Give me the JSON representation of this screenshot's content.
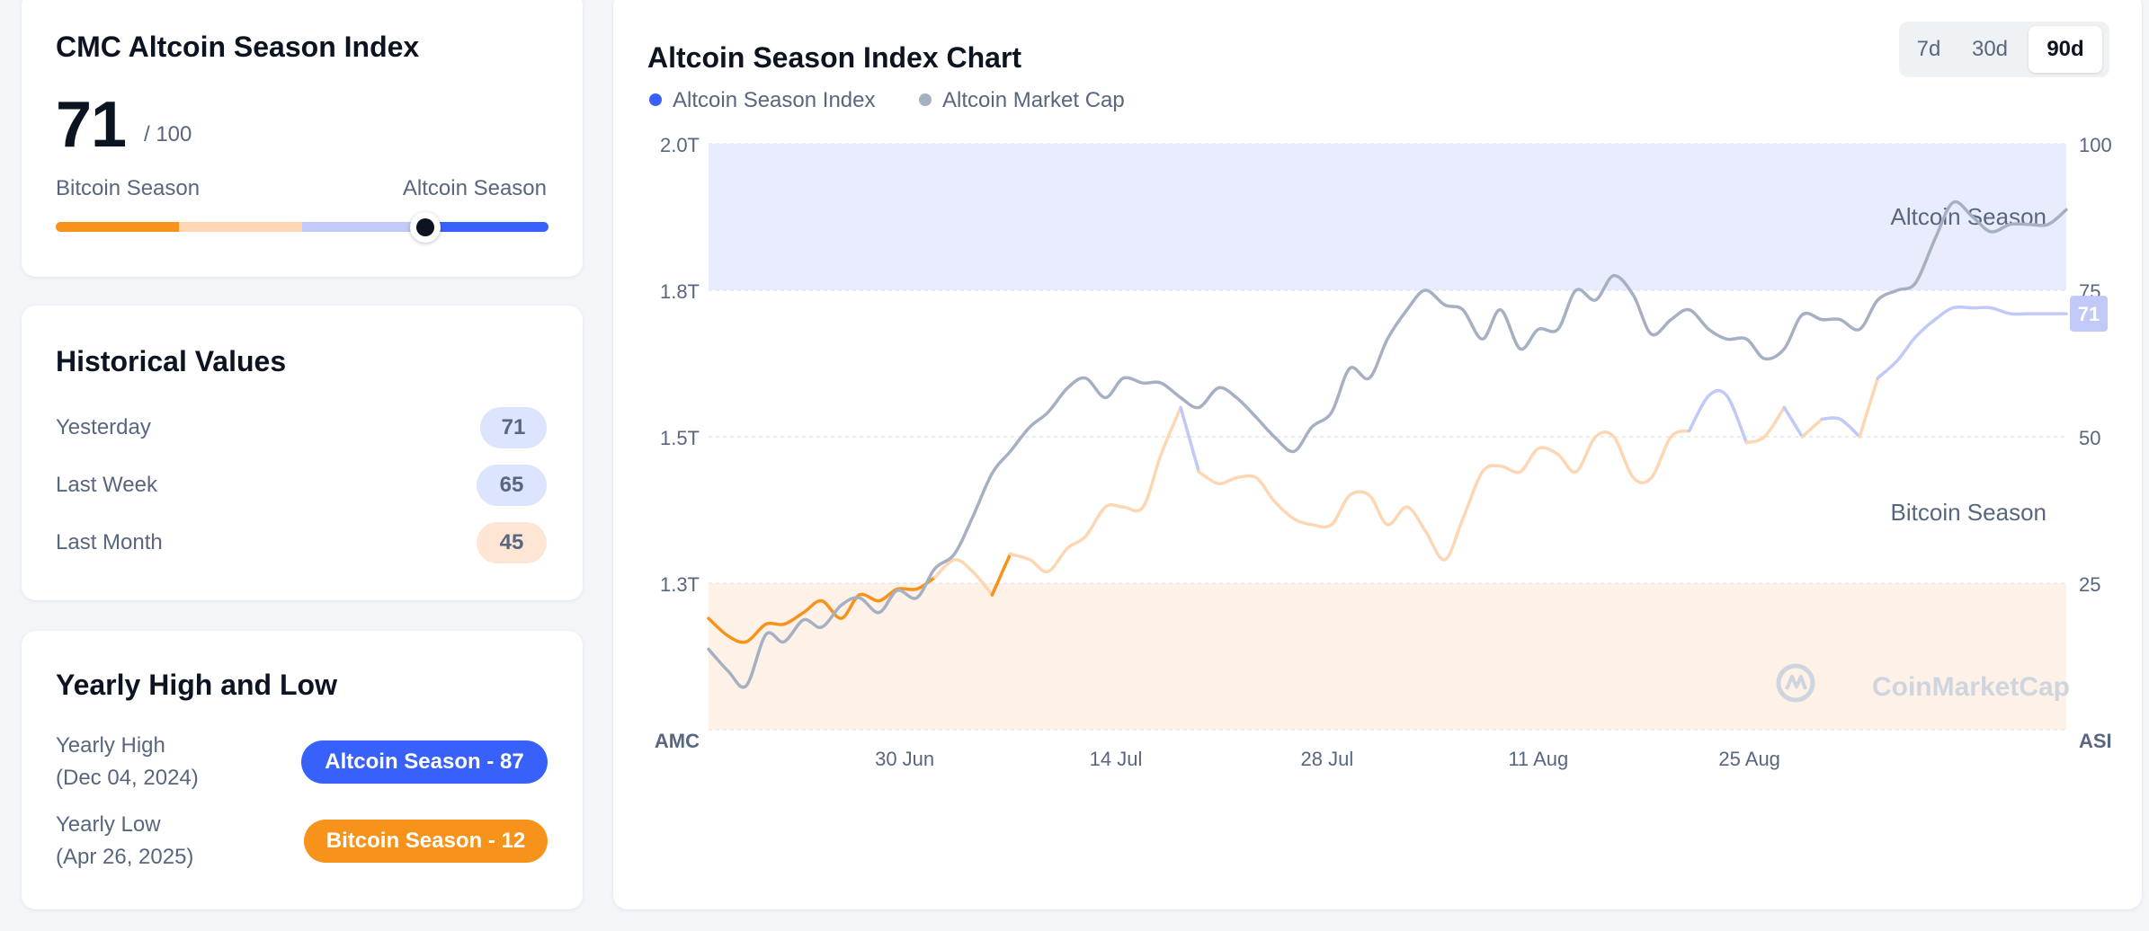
{
  "index_card": {
    "title": "CMC Altcoin Season Index",
    "value": "71",
    "max": "/ 100",
    "left_label": "Bitcoin Season",
    "right_label": "Altcoin Season",
    "position_pct": 71,
    "colors": [
      "#f7931a",
      "#fdd6b4",
      "#c0c9f7",
      "#3861fb"
    ]
  },
  "historical": {
    "title": "Historical Values",
    "rows": [
      {
        "label": "Yesterday",
        "value": "71",
        "bg": "#dde4fd"
      },
      {
        "label": "Last Week",
        "value": "65",
        "bg": "#dde4fd"
      },
      {
        "label": "Last Month",
        "value": "45",
        "bg": "#fde6d4"
      }
    ]
  },
  "yearly": {
    "title": "Yearly High and Low",
    "high_label": "Yearly High",
    "high_date": "(Dec 04, 2024)",
    "high_badge": "Altcoin Season - 87",
    "high_color": "#3861fb",
    "low_label": "Yearly Low",
    "low_date": "(Apr 26, 2025)",
    "low_badge": "Bitcoin Season - 12",
    "low_color": "#f7931a"
  },
  "chart_card": {
    "title": "Altcoin Season Index Chart",
    "tabs": [
      "7d",
      "30d",
      "90d"
    ],
    "active_tab": "90d"
  },
  "chart_data": {
    "type": "line",
    "title": "Altcoin Season Index Chart",
    "x_ticks": [
      "30 Jun",
      "14 Jul",
      "28 Jul",
      "11 Aug",
      "25 Aug"
    ],
    "x_tick_days": [
      19,
      33,
      47,
      61,
      75
    ],
    "x_range_days": [
      6,
      96
    ],
    "x_start_label": "AMC",
    "x_end_label": "ASI",
    "y_left_ticks": [
      "2.0T",
      "1.8T",
      "1.5T",
      "1.3T"
    ],
    "y_right_ticks": [
      "100",
      "75",
      "50",
      "25"
    ],
    "y_right_range": [
      0,
      100
    ],
    "y_left_tick_values": [
      2.0,
      1.8,
      1.5,
      1.3
    ],
    "zones": [
      {
        "label": "Altcoin Season",
        "from": 75,
        "to": 100,
        "color": "#e9ecfd"
      },
      {
        "label": "Bitcoin Season",
        "from": 0,
        "to": 25,
        "color": "#fef1e7"
      }
    ],
    "last_value_label": "71",
    "watermark": "CoinMarketCap",
    "series": [
      {
        "name": "Altcoin Season Index",
        "color": "#3861fb",
        "days": [
          6,
          7.3,
          8.5,
          9.8,
          11,
          12.3,
          13.5,
          14.8,
          16,
          17.3,
          18.5,
          19.8,
          21,
          22.3,
          23.5,
          24.8,
          26,
          27.3,
          28.5,
          29.8,
          31,
          32.3,
          33.5,
          34.8,
          36,
          37.3,
          38.5,
          39.8,
          41,
          42.3,
          43.5,
          44.8,
          46,
          47.3,
          48.5,
          49.8,
          51,
          52.3,
          53.5,
          54.8,
          56,
          57.3,
          58.5,
          59.8,
          61,
          62.3,
          63.5,
          64.8,
          66,
          67.3,
          68.5,
          69.8,
          71,
          72.3,
          73.5,
          74.8,
          76,
          77.3,
          78.5,
          79.8,
          81,
          82.3,
          83.5,
          84.8,
          86,
          87.3,
          88.5,
          89.8,
          91,
          92.3,
          93.5,
          94.8,
          96
        ],
        "values": [
          19,
          16,
          15,
          18,
          18,
          20,
          22,
          19,
          23,
          22,
          24,
          24,
          26,
          29,
          27,
          23,
          30,
          29,
          27,
          31,
          33,
          38,
          38,
          38,
          47,
          55,
          44,
          42,
          43,
          43,
          39,
          36,
          35,
          35,
          40,
          40,
          35,
          38,
          34,
          29,
          36,
          44,
          45,
          44,
          48,
          47,
          44,
          50,
          50,
          43,
          43,
          50,
          51,
          57,
          57,
          49,
          50,
          55,
          50,
          53,
          53,
          50,
          60,
          63,
          67,
          70,
          72,
          72,
          72,
          71,
          71,
          71,
          71
        ]
      },
      {
        "name": "Altcoin Market Cap",
        "color": "#a6b0c3",
        "days": [
          6,
          7.3,
          8.5,
          9.8,
          11,
          12.3,
          13.5,
          14.8,
          16,
          17.3,
          18.5,
          19.8,
          21,
          22.3,
          23.5,
          24.8,
          26,
          27.3,
          28.5,
          29.8,
          31,
          32.3,
          33.5,
          34.8,
          36,
          37.3,
          38.5,
          39.8,
          41,
          42.3,
          43.5,
          44.8,
          46,
          47.3,
          48.5,
          49.8,
          51,
          52.3,
          53.5,
          54.8,
          56,
          57.3,
          58.5,
          59.8,
          61,
          62.3,
          63.5,
          64.8,
          66,
          67.3,
          68.5,
          69.8,
          71,
          72.3,
          73.5,
          74.8,
          76,
          77.3,
          78.5,
          79.8,
          81,
          82.3,
          83.5,
          84.8,
          86,
          87.3,
          88.5,
          89.8,
          91,
          92.3,
          93.5,
          94.8,
          96
        ],
        "values": [
          1.21,
          1.18,
          1.16,
          1.23,
          1.22,
          1.25,
          1.24,
          1.27,
          1.28,
          1.26,
          1.29,
          1.28,
          1.32,
          1.34,
          1.39,
          1.45,
          1.48,
          1.52,
          1.55,
          1.6,
          1.62,
          1.58,
          1.62,
          1.61,
          1.61,
          1.58,
          1.56,
          1.6,
          1.58,
          1.54,
          1.5,
          1.48,
          1.52,
          1.55,
          1.64,
          1.62,
          1.7,
          1.76,
          1.8,
          1.77,
          1.76,
          1.7,
          1.76,
          1.68,
          1.72,
          1.72,
          1.8,
          1.78,
          1.82,
          1.79,
          1.71,
          1.74,
          1.76,
          1.72,
          1.7,
          1.7,
          1.66,
          1.68,
          1.75,
          1.74,
          1.74,
          1.72,
          1.78,
          1.8,
          1.81,
          1.87,
          1.92,
          1.9,
          1.88,
          1.89,
          1.89,
          1.89,
          1.91
        ]
      }
    ]
  }
}
